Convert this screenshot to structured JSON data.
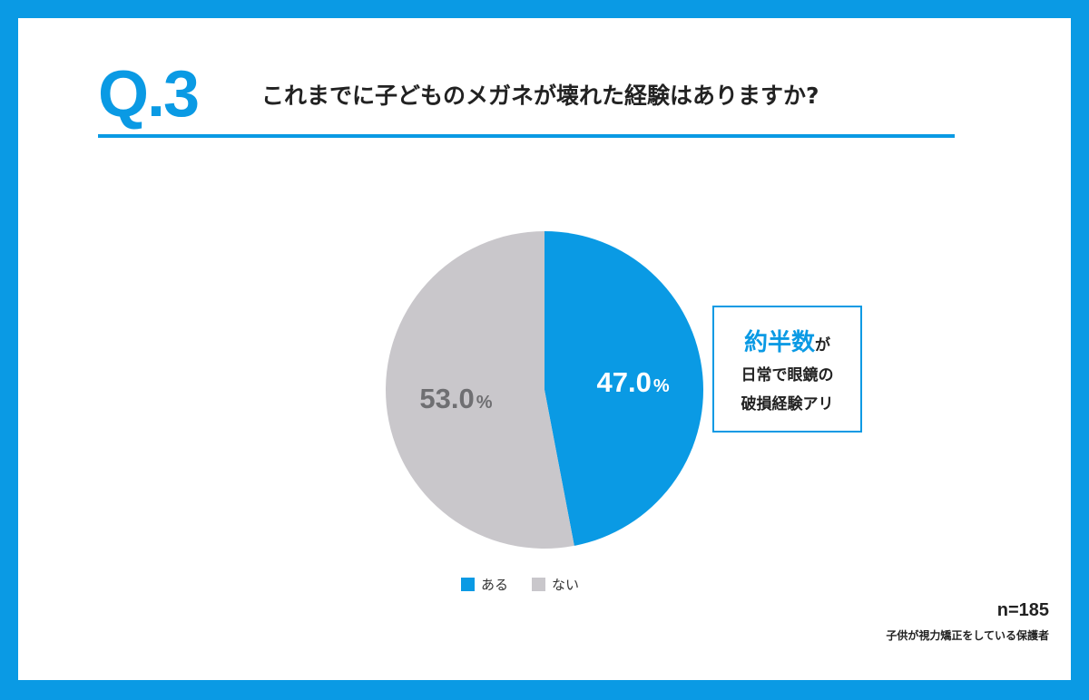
{
  "header": {
    "q_label": "Q.3",
    "question": "これまでに子どものメガネが壊れた経験はありますか?"
  },
  "colors": {
    "accent": "#0a9ae4",
    "gray_slice": "#c9c7cb",
    "gray_text": "#6f6f72"
  },
  "chart_data": {
    "type": "pie",
    "categories": [
      "ある",
      "ない"
    ],
    "values": [
      47.0,
      53.0
    ],
    "value_labels": [
      {
        "number": "47.0",
        "unit": "%"
      },
      {
        "number": "53.0",
        "unit": "%"
      }
    ],
    "colors": [
      "#0a9ae4",
      "#c9c7cb"
    ],
    "start_angle_deg": 0,
    "direction": "clockwise",
    "legend": {
      "placement": "bottom"
    },
    "sample_size": "n=185",
    "respondents": "子供が視力矯正をしている保護者"
  },
  "callout": {
    "emphasis": "約半数",
    "line1_suffix": "が",
    "line2": "日常で眼鏡の",
    "line3": "破損経験アリ"
  }
}
